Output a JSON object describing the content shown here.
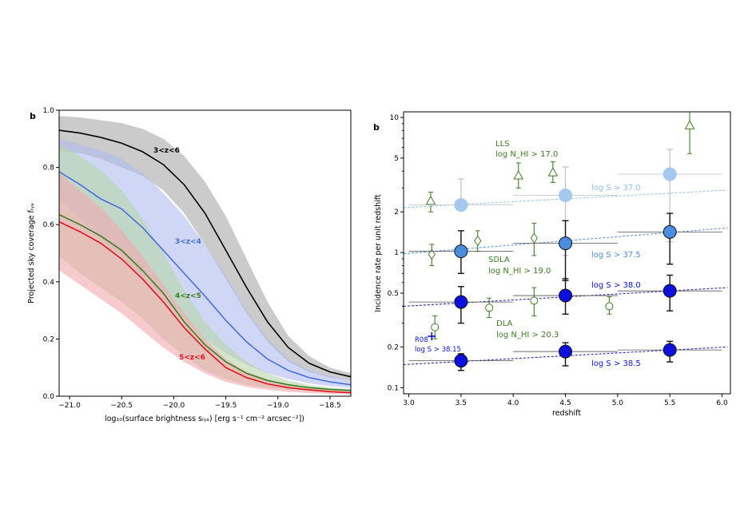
{
  "chart_data": [
    {
      "panel_label": "b",
      "type": "line",
      "xlabel": "log₁₀(surface brightness sₗᵧₐ) [erg s⁻¹ cm⁻² arcsec⁻²])",
      "ylabel": "Projected sky coverage fₗᵧₐ",
      "xlim": [
        -21.1,
        -18.3
      ],
      "ylim": [
        0.0,
        1.0
      ],
      "xticks": [
        -21.0,
        -20.5,
        -20.0,
        -19.5,
        -19.0,
        -18.5
      ],
      "xtick_labels": [
        "−21.0",
        "−20.5",
        "−20.0",
        "−19.5",
        "−19.0",
        "−18.5"
      ],
      "yticks": [
        0.0,
        0.2,
        0.4,
        0.6,
        0.8,
        1.0
      ],
      "ytick_labels": [
        "0.0",
        "0.2",
        "0.4",
        "0.6",
        "0.8",
        "1.0"
      ],
      "series": [
        {
          "name": "3<z<6",
          "color": "#000000",
          "band_color": "#a9a9a9",
          "x": [
            -21.1,
            -20.9,
            -20.7,
            -20.5,
            -20.3,
            -20.1,
            -19.9,
            -19.7,
            -19.5,
            -19.3,
            -19.1,
            -18.9,
            -18.7,
            -18.5,
            -18.3
          ],
          "y": [
            0.93,
            0.92,
            0.905,
            0.885,
            0.855,
            0.81,
            0.74,
            0.64,
            0.51,
            0.38,
            0.26,
            0.17,
            0.115,
            0.085,
            0.068
          ],
          "lo": [
            0.86,
            0.85,
            0.83,
            0.8,
            0.77,
            0.72,
            0.64,
            0.53,
            0.41,
            0.29,
            0.19,
            0.12,
            0.085,
            0.065,
            0.055
          ],
          "hi": [
            0.98,
            0.975,
            0.965,
            0.955,
            0.935,
            0.9,
            0.84,
            0.75,
            0.63,
            0.48,
            0.33,
            0.21,
            0.14,
            0.1,
            0.08
          ]
        },
        {
          "name": "3<z<4",
          "color": "#4a6fdc",
          "band_color": "#b0baf0",
          "x": [
            -21.1,
            -20.9,
            -20.7,
            -20.5,
            -20.3,
            -20.1,
            -19.9,
            -19.7,
            -19.5,
            -19.3,
            -19.1,
            -18.9,
            -18.7,
            -18.5,
            -18.3
          ],
          "y": [
            0.785,
            0.74,
            0.69,
            0.655,
            0.59,
            0.51,
            0.43,
            0.35,
            0.265,
            0.19,
            0.13,
            0.09,
            0.065,
            0.05,
            0.04
          ],
          "lo": [
            0.69,
            0.62,
            0.55,
            0.49,
            0.42,
            0.34,
            0.27,
            0.2,
            0.15,
            0.11,
            0.08,
            0.06,
            0.045,
            0.035,
            0.03
          ],
          "hi": [
            0.9,
            0.88,
            0.86,
            0.83,
            0.78,
            0.71,
            0.63,
            0.53,
            0.42,
            0.3,
            0.2,
            0.13,
            0.09,
            0.07,
            0.055
          ]
        },
        {
          "name": "4<z<5",
          "color": "#3c7d22",
          "band_color": "#b5d6a8",
          "x": [
            -21.1,
            -20.9,
            -20.7,
            -20.5,
            -20.3,
            -20.1,
            -19.9,
            -19.7,
            -19.5,
            -19.3,
            -19.1,
            -18.9,
            -18.7,
            -18.5,
            -18.3
          ],
          "y": [
            0.635,
            0.6,
            0.56,
            0.51,
            0.44,
            0.36,
            0.26,
            0.18,
            0.12,
            0.08,
            0.055,
            0.04,
            0.03,
            0.024,
            0.02
          ],
          "lo": [
            0.49,
            0.43,
            0.38,
            0.33,
            0.27,
            0.2,
            0.14,
            0.09,
            0.06,
            0.04,
            0.03,
            0.022,
            0.017,
            0.013,
            0.01
          ],
          "hi": [
            0.88,
            0.84,
            0.79,
            0.72,
            0.62,
            0.5,
            0.37,
            0.26,
            0.18,
            0.12,
            0.08,
            0.055,
            0.04,
            0.03,
            0.025
          ]
        },
        {
          "name": "5<z<6",
          "color": "#e0141e",
          "band_color": "#f2a7ad",
          "x": [
            -21.1,
            -20.9,
            -20.7,
            -20.5,
            -20.3,
            -20.1,
            -19.9,
            -19.7,
            -19.5,
            -19.3,
            -19.1,
            -18.9,
            -18.7,
            -18.5,
            -18.3
          ],
          "y": [
            0.61,
            0.575,
            0.535,
            0.48,
            0.41,
            0.33,
            0.24,
            0.165,
            0.1,
            0.065,
            0.043,
            0.03,
            0.022,
            0.016,
            0.012
          ],
          "lo": [
            0.44,
            0.39,
            0.34,
            0.29,
            0.23,
            0.17,
            0.12,
            0.08,
            0.05,
            0.033,
            0.022,
            0.015,
            0.011,
            0.008,
            0.006
          ],
          "hi": [
            0.78,
            0.72,
            0.66,
            0.58,
            0.49,
            0.39,
            0.29,
            0.2,
            0.13,
            0.085,
            0.058,
            0.04,
            0.03,
            0.022,
            0.017
          ]
        }
      ]
    },
    {
      "panel_label": "b",
      "type": "scatter",
      "yscale": "log",
      "xlabel": "redshift",
      "ylabel": "Incidence rate per unit redshift",
      "xlim": [
        2.95,
        6.08
      ],
      "ylim": [
        0.09,
        11.0
      ],
      "xticks": [
        3.0,
        3.5,
        4.0,
        4.5,
        5.0,
        5.5,
        6.0
      ],
      "xtick_labels": [
        "3.0",
        "3.5",
        "4.0",
        "4.5",
        "5.0",
        "5.5",
        "6.0"
      ],
      "yticks": [
        0.1,
        0.2,
        0.5,
        1,
        2,
        5,
        10
      ],
      "ytick_labels": [
        "0.1",
        "0.2",
        "0.5",
        "1",
        "2",
        "5",
        "10"
      ],
      "simulation_series": [
        {
          "name": "log S > 37.0",
          "label": "log S > 37.0",
          "color": "#a5c8ef",
          "edge": "#a5c8ef",
          "line_color": "#8fbfea",
          "label_color": "#8fbfea",
          "x": [
            3.5,
            4.5,
            5.5
          ],
          "y": [
            2.25,
            2.65,
            3.8
          ],
          "yerr_lo": [
            2.25,
            0.95,
            1.2
          ],
          "yerr_hi": [
            3.5,
            4.3,
            5.8
          ],
          "x_lo": [
            3.0,
            4.0,
            5.0
          ],
          "x_hi": [
            4.0,
            5.0,
            6.0
          ],
          "fit": [
            [
              2.95,
              2.15
            ],
            [
              6.05,
              2.9
            ]
          ]
        },
        {
          "name": "log S > 37.5",
          "label": "log S > 37.5",
          "color": "#4a8ee0",
          "edge": "#111111",
          "line_color": "#4a8ee0",
          "label_color": "#4a8ee0",
          "x": [
            3.5,
            4.5,
            5.5
          ],
          "y": [
            1.02,
            1.17,
            1.42
          ],
          "yerr_lo": [
            0.7,
            0.62,
            0.82
          ],
          "yerr_hi": [
            1.45,
            1.72,
            1.95
          ],
          "x_lo": [
            3.0,
            4.0,
            5.0
          ],
          "x_hi": [
            4.0,
            5.0,
            6.0
          ],
          "fit": [
            [
              2.95,
              0.98
            ],
            [
              6.05,
              1.52
            ]
          ]
        },
        {
          "name": "log S > 38.0",
          "label": "log S > 38.0",
          "color": "#0b10dd",
          "edge": "#111111",
          "line_color": "#1a1aa8",
          "label_color": "#0b10dd",
          "x": [
            3.5,
            4.5,
            5.5
          ],
          "y": [
            0.43,
            0.48,
            0.52
          ],
          "yerr_lo": [
            0.3,
            0.35,
            0.37
          ],
          "yerr_hi": [
            0.56,
            0.64,
            0.68
          ],
          "x_lo": [
            3.0,
            4.0,
            5.0
          ],
          "x_hi": [
            4.0,
            5.0,
            6.0
          ],
          "fit": [
            [
              2.95,
              0.4
            ],
            [
              6.05,
              0.55
            ]
          ]
        },
        {
          "name": "log S > 38.5",
          "label": "log S > 38.5",
          "color": "#0b10dd",
          "edge": "#111111",
          "line_color": "#1a1aa8",
          "label_color": "#0b10dd",
          "x": [
            3.5,
            4.5,
            5.5
          ],
          "y": [
            0.158,
            0.185,
            0.19
          ],
          "yerr_lo": [
            0.134,
            0.145,
            0.155
          ],
          "yerr_hi": [
            0.178,
            0.215,
            0.22
          ],
          "x_lo": [
            3.0,
            4.0,
            5.0
          ],
          "x_hi": [
            4.0,
            5.0,
            6.0
          ],
          "fit": [
            [
              2.95,
              0.148
            ],
            [
              6.05,
              0.2
            ]
          ]
        }
      ],
      "observation_series": [
        {
          "name": "LLS",
          "marker": "triangle",
          "color": "#3c7d22",
          "x": [
            3.21,
            4.05,
            4.38,
            5.69
          ],
          "y": [
            2.4,
            3.7,
            3.9,
            8.7
          ],
          "yerr_lo": [
            2.0,
            3.0,
            3.3,
            5.4
          ],
          "yerr_hi": [
            2.8,
            4.6,
            4.7,
            11.0
          ]
        },
        {
          "name": "SDLA",
          "marker": "diamond",
          "color": "#3c7d22",
          "x": [
            3.22,
            3.66,
            4.2
          ],
          "y": [
            0.97,
            1.22,
            1.28
          ],
          "yerr_lo": [
            0.8,
            1.02,
            0.95
          ],
          "yerr_hi": [
            1.15,
            1.45,
            1.65
          ]
        },
        {
          "name": "DLA",
          "marker": "circle",
          "color": "#3c7d22",
          "x": [
            3.25,
            3.77,
            4.2,
            4.92
          ],
          "y": [
            0.28,
            0.39,
            0.44,
            0.4
          ],
          "yerr_lo": [
            0.23,
            0.33,
            0.34,
            0.35
          ],
          "yerr_hi": [
            0.34,
            0.46,
            0.55,
            0.47
          ]
        },
        {
          "name": "R08",
          "marker": "plus",
          "color": "#0b10dd",
          "x": [
            3.22
          ],
          "y": [
            0.24
          ]
        }
      ],
      "annotations": {
        "lls_title": "LLS",
        "lls_cond": "log N_HI > 17.0",
        "sdla_title": "SDLA",
        "sdla_cond": "log N_HI > 19.0",
        "dla_title": "DLA",
        "dla_cond": "log N_HI > 20.3",
        "r08_title": "R08",
        "r08_cond": "log S > 38.15"
      }
    }
  ]
}
